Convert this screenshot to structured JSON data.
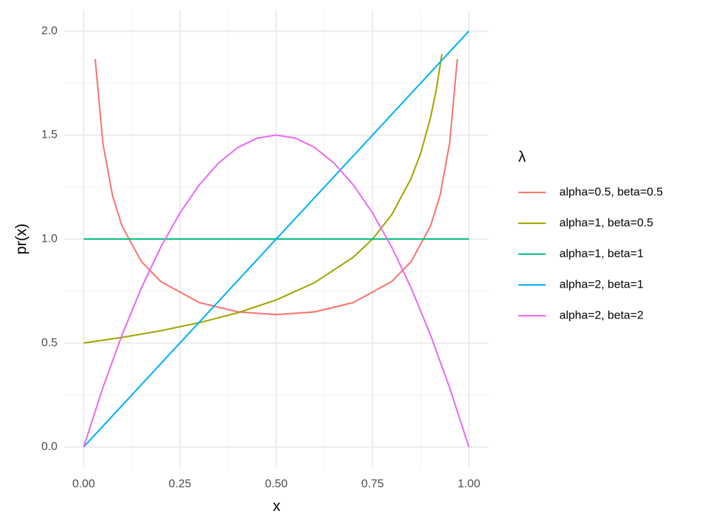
{
  "chart_data": {
    "type": "line",
    "x_label": "x",
    "y_label": "pr(x)",
    "legend_title": "λ",
    "legend_position": "right",
    "grid": true,
    "xlim": [
      -0.05,
      1.05
    ],
    "ylim": [
      -0.1,
      2.1
    ],
    "xticks": [
      {
        "value": 0,
        "label": "0.00"
      },
      {
        "value": 0.25,
        "label": "0.25"
      },
      {
        "value": 0.5,
        "label": "0.50"
      },
      {
        "value": 0.75,
        "label": "0.75"
      },
      {
        "value": 1,
        "label": "1.00"
      }
    ],
    "yticks": [
      {
        "value": 0,
        "label": "0.0"
      },
      {
        "value": 0.5,
        "label": "0.5"
      },
      {
        "value": 1,
        "label": "1.0"
      },
      {
        "value": 1.5,
        "label": "1.5"
      },
      {
        "value": 2,
        "label": "2.0"
      }
    ],
    "xminor": [
      0.125,
      0.375,
      0.625,
      0.875
    ],
    "yminor": [
      0.25,
      0.75,
      1.25,
      1.75
    ],
    "series": [
      {
        "name": "alpha=0.5, beta=0.5",
        "color": "#F8766D",
        "x": [
          0.03,
          0.05,
          0.075,
          0.1,
          0.15,
          0.2,
          0.3,
          0.4,
          0.5,
          0.6,
          0.7,
          0.8,
          0.85,
          0.9,
          0.925,
          0.95,
          0.97
        ],
        "values": [
          1.866,
          1.4605,
          1.2085,
          1.061,
          0.8915,
          0.7958,
          0.6946,
          0.6497,
          0.6366,
          0.6497,
          0.6946,
          0.7958,
          0.8915,
          1.061,
          1.2085,
          1.4605,
          1.866
        ]
      },
      {
        "name": "alpha=1, beta=0.5",
        "color": "#A3A500",
        "x": [
          0,
          0.1,
          0.2,
          0.3,
          0.4,
          0.5,
          0.6,
          0.7,
          0.75,
          0.8,
          0.85,
          0.875,
          0.9,
          0.915,
          0.93
        ],
        "values": [
          0.5,
          0.527,
          0.559,
          0.5976,
          0.6455,
          0.7071,
          0.7906,
          0.9129,
          1.0,
          1.118,
          1.291,
          1.4142,
          1.5811,
          1.715,
          1.8898
        ]
      },
      {
        "name": "alpha=1, beta=1",
        "color": "#00BF7D",
        "x": [
          0,
          1
        ],
        "values": [
          1,
          1
        ]
      },
      {
        "name": "alpha=2, beta=1",
        "color": "#00B0F6",
        "x": [
          0,
          1
        ],
        "values": [
          0,
          2
        ]
      },
      {
        "name": "alpha=2, beta=2",
        "color": "#E76BF3",
        "x": [
          0,
          0.05,
          0.1,
          0.15,
          0.2,
          0.25,
          0.3,
          0.35,
          0.4,
          0.45,
          0.5,
          0.55,
          0.6,
          0.65,
          0.7,
          0.75,
          0.8,
          0.85,
          0.9,
          0.95,
          1
        ],
        "values": [
          0,
          0.285,
          0.54,
          0.765,
          0.96,
          1.125,
          1.26,
          1.365,
          1.44,
          1.485,
          1.5,
          1.485,
          1.44,
          1.365,
          1.26,
          1.125,
          0.96,
          0.765,
          0.54,
          0.285,
          0
        ]
      }
    ]
  }
}
